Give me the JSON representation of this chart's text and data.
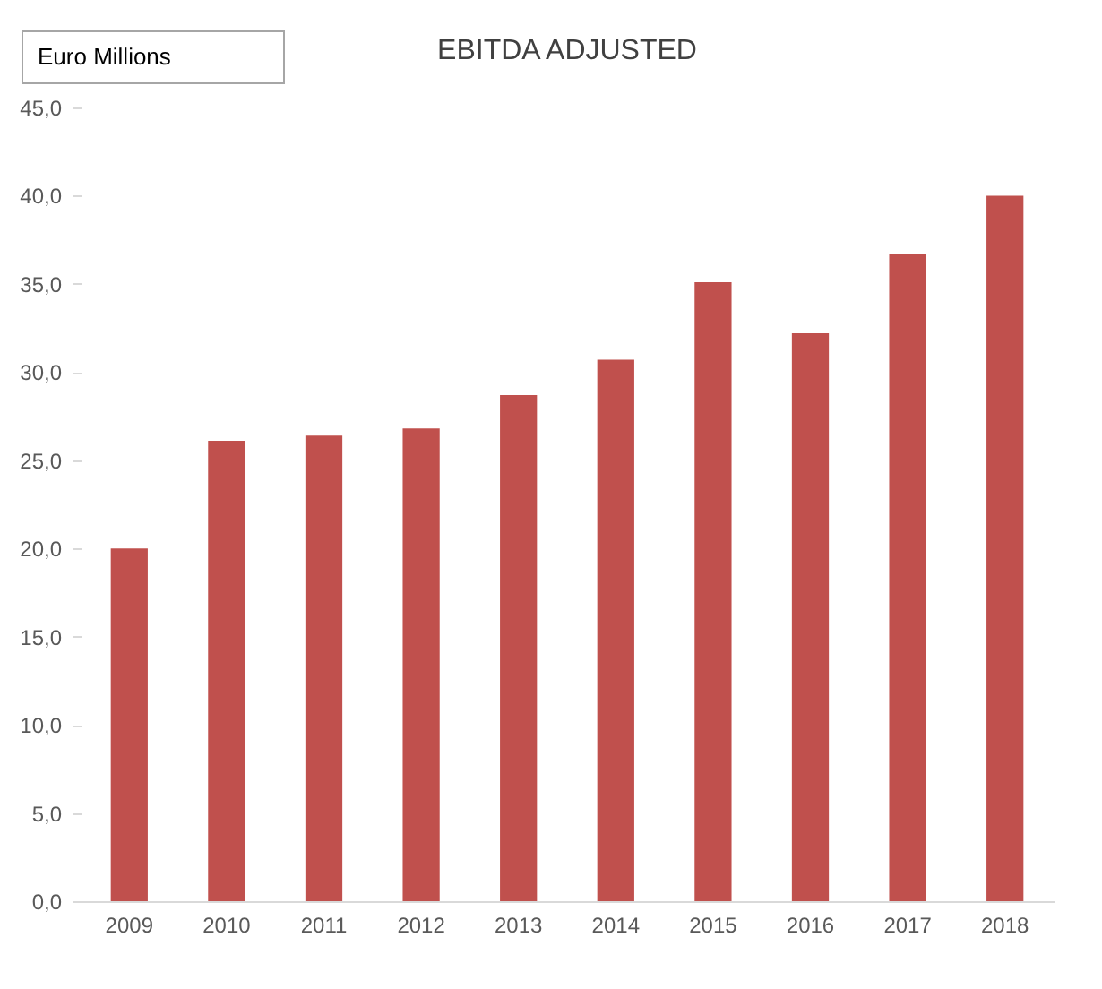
{
  "chart_data": {
    "type": "bar",
    "title": "EBITDA ADJUSTED",
    "ylabel": "Euro Millions",
    "categories": [
      "2009",
      "2010",
      "2011",
      "2012",
      "2013",
      "2014",
      "2015",
      "2016",
      "2017",
      "2018"
    ],
    "values": [
      20.0,
      26.1,
      26.4,
      26.8,
      28.7,
      30.7,
      35.1,
      32.2,
      36.7,
      40.0
    ],
    "color": "#c0504d",
    "ylim": [
      0,
      45
    ],
    "yticks": [
      {
        "value": 0,
        "label": "0,0"
      },
      {
        "value": 5,
        "label": "5,0"
      },
      {
        "value": 10,
        "label": "10,0"
      },
      {
        "value": 15,
        "label": "15,0"
      },
      {
        "value": 20,
        "label": "20,0"
      },
      {
        "value": 25,
        "label": "25,0"
      },
      {
        "value": 30,
        "label": "30,0"
      },
      {
        "value": 35,
        "label": "35,0"
      },
      {
        "value": 40,
        "label": "40,0"
      },
      {
        "value": 45,
        "label": "45,0"
      }
    ]
  }
}
